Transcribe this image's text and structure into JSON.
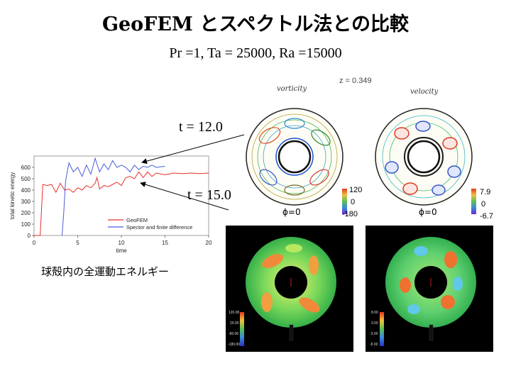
{
  "slide": {
    "title": "GeoFEM とスペクトル法との比較",
    "subtitle": "Pr =1, Ta = 25000, Ra =15000",
    "caption": "球殻内の全運動エネルギー"
  },
  "annotations": {
    "t1": "t = 12.0",
    "t2": "t = 15.0"
  },
  "contour_panels": {
    "z_label": "z = 0.349",
    "vorticity_title": "vorticity",
    "velocity_title": "velocity",
    "vorticity_scale": [
      "120",
      "0",
      "-180"
    ],
    "velocity_scale": [
      "7.9",
      "0",
      "-6.7"
    ],
    "phi_label": "ϕ=0"
  },
  "render_panels": {
    "left_scale": [
      "120.00",
      "20.00",
      "-80.00",
      "-180.00"
    ],
    "right_scale": [
      "8.00",
      "3.00",
      "-3.00",
      "-8.00"
    ]
  },
  "colors": {
    "geofem": "#e8302a",
    "spector": "#4a5cd8",
    "cool": "#1a4fd6",
    "warm": "#e23a1e"
  },
  "chart_data": {
    "type": "line",
    "xlabel": "time",
    "ylabel": "total kinetic energy",
    "xlim": [
      0,
      20
    ],
    "ylim": [
      0,
      700
    ],
    "xticks": [
      "0",
      "5",
      "10",
      "15",
      "20"
    ],
    "yticks": [
      "0",
      "100",
      "200",
      "300",
      "400",
      "500",
      "600"
    ],
    "legend_position": "bottom-right",
    "series": [
      {
        "name": "GeoFEM",
        "color": "#e8302a",
        "x": [
          0,
          0.7,
          0.9,
          1.0,
          1.5,
          2.0,
          2.5,
          3.0,
          3.5,
          4.0,
          4.5,
          5.0,
          5.5,
          6.0,
          6.5,
          7.0,
          7.2,
          7.5,
          8.0,
          8.5,
          9.0,
          9.5,
          10.0,
          10.5,
          11.0,
          11.5,
          12.0,
          12.5,
          13.0,
          13.5,
          14.0,
          15.0,
          16.0,
          17.0,
          18.0,
          19.0,
          20.0
        ],
        "y": [
          0,
          0,
          300,
          450,
          440,
          450,
          380,
          460,
          400,
          410,
          380,
          420,
          400,
          440,
          420,
          460,
          510,
          410,
          440,
          430,
          450,
          470,
          440,
          510,
          520,
          500,
          560,
          510,
          560,
          520,
          550,
          535,
          550,
          545,
          550,
          545,
          550
        ]
      },
      {
        "name": "Spector and finite difference",
        "color": "#4a5cd8",
        "x": [
          3.2,
          3.4,
          3.6,
          3.8,
          4.0,
          4.5,
          5.0,
          5.5,
          6.0,
          6.5,
          7.0,
          7.5,
          8.0,
          8.5,
          9.0,
          9.5,
          10.0,
          10.5,
          11.0,
          11.5,
          12.0,
          12.5,
          13.0,
          13.5,
          14.0,
          15.0
        ],
        "y": [
          0,
          200,
          470,
          560,
          640,
          560,
          600,
          520,
          620,
          540,
          680,
          560,
          630,
          580,
          660,
          600,
          620,
          600,
          560,
          620,
          580,
          610,
          600,
          620,
          600,
          610
        ]
      }
    ]
  }
}
